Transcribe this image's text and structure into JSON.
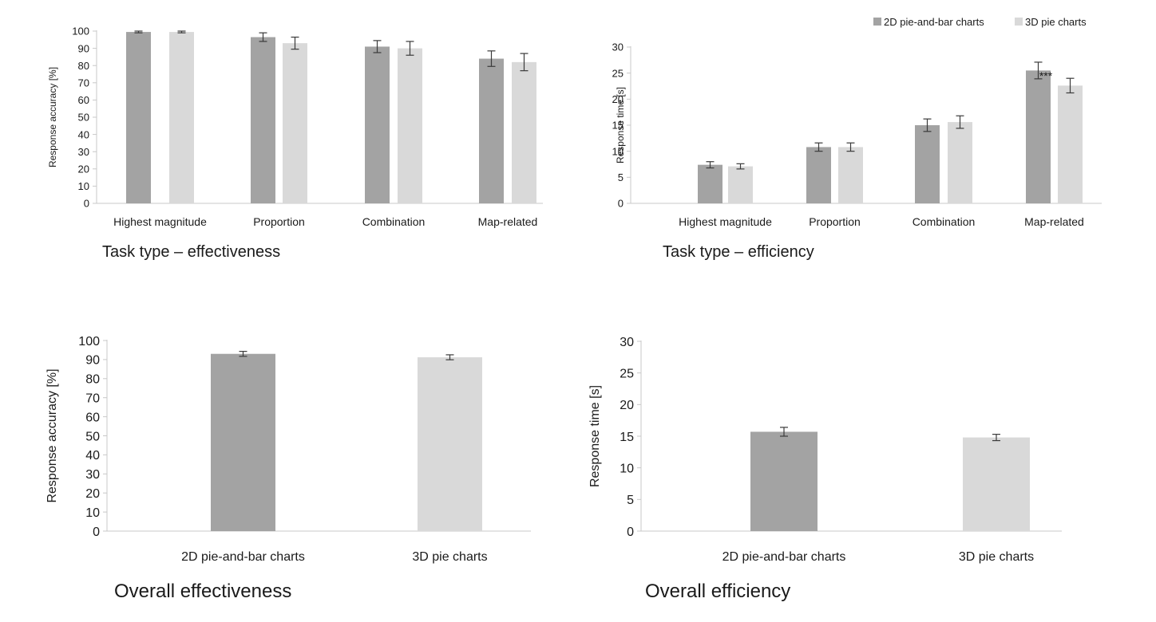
{
  "colors": {
    "series_2d": "#a3a3a3",
    "series_3d": "#d9d9d9",
    "axis": "#c8c8c8",
    "error_bar": "#3a3a3a"
  },
  "legend": {
    "items": [
      "2D pie-and-bar charts",
      "3D pie charts"
    ],
    "placement": "top-right"
  },
  "chart_data": [
    {
      "type": "bar",
      "title": "Task type – effectiveness",
      "ylabel": "Response accuracy [%]",
      "ylim": [
        0,
        100
      ],
      "yticks": [
        0,
        10,
        20,
        30,
        40,
        50,
        60,
        70,
        80,
        90,
        100
      ],
      "categories": [
        "Highest magnitude",
        "Proportion",
        "Combination",
        "Map-related"
      ],
      "series": [
        {
          "name": "2D pie-and-bar charts",
          "values": [
            99.5,
            96.5,
            91,
            84
          ],
          "errors": [
            0.5,
            2.5,
            3.5,
            4.5
          ]
        },
        {
          "name": "3D pie charts",
          "values": [
            99.5,
            93,
            90,
            82
          ],
          "errors": [
            0.5,
            3.5,
            4,
            5
          ]
        }
      ],
      "grid": false
    },
    {
      "type": "bar",
      "title": "Task type – efficiency",
      "ylabel": "Response time [s]",
      "ylim": [
        0,
        30
      ],
      "yticks": [
        0,
        5,
        10,
        15,
        20,
        25,
        30
      ],
      "categories": [
        "Highest magnitude",
        "Proportion",
        "Combination",
        "Map-related"
      ],
      "series": [
        {
          "name": "2D pie-and-bar charts",
          "values": [
            7.4,
            10.8,
            15,
            25.5
          ],
          "errors": [
            0.6,
            0.8,
            1.2,
            1.6
          ]
        },
        {
          "name": "3D pie charts",
          "values": [
            7.1,
            10.8,
            15.6,
            22.6
          ],
          "errors": [
            0.5,
            0.8,
            1.2,
            1.4
          ]
        }
      ],
      "annotations": [
        {
          "category": "Map-related",
          "text": "***"
        }
      ],
      "grid": false
    },
    {
      "type": "bar",
      "title": "Overall effectiveness",
      "ylabel": "Response accuracy [%]",
      "ylim": [
        0,
        100
      ],
      "yticks": [
        0,
        10,
        20,
        30,
        40,
        50,
        60,
        70,
        80,
        90,
        100
      ],
      "categories": [
        "2D pie-and-bar charts",
        "3D pie charts"
      ],
      "values": [
        93,
        91.2
      ],
      "errors": [
        1.3,
        1.3
      ],
      "grid": false
    },
    {
      "type": "bar",
      "title": "Overall efficiency",
      "ylabel": "Response time [s]",
      "ylim": [
        0,
        30
      ],
      "yticks": [
        0,
        5,
        10,
        15,
        20,
        25,
        30
      ],
      "categories": [
        "2D pie-and-bar charts",
        "3D pie charts"
      ],
      "values": [
        15.7,
        14.8
      ],
      "errors": [
        0.7,
        0.5
      ],
      "grid": false
    }
  ]
}
